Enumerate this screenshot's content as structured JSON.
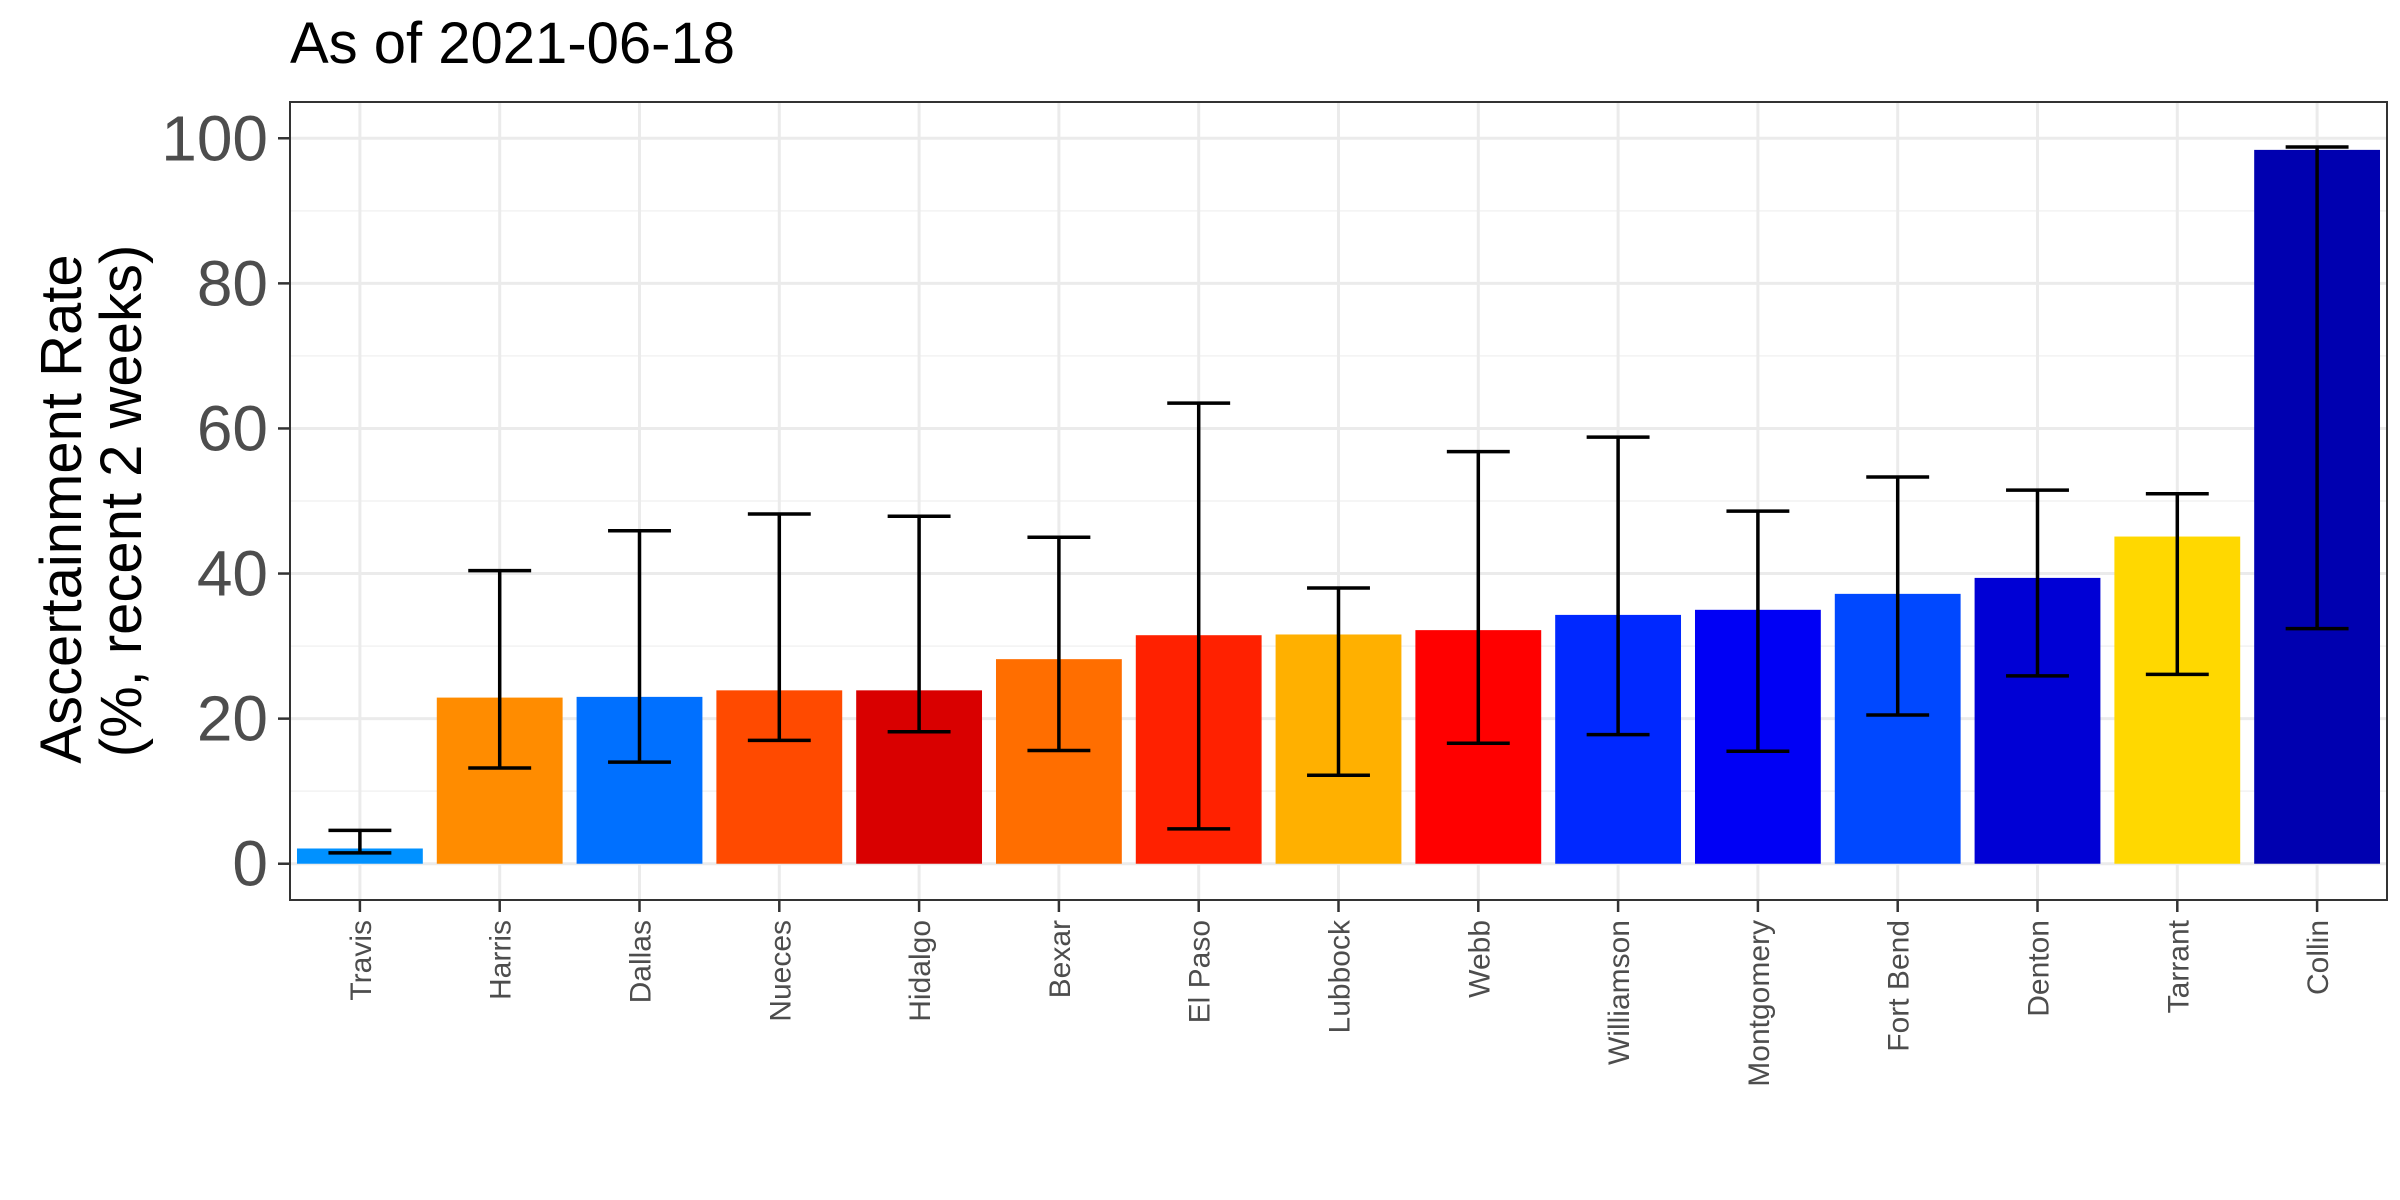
{
  "chart_data": {
    "type": "bar",
    "title": "As of 2021-06-18",
    "ylabel_lines": [
      "Ascertainment Rate",
      "(%, recent 2 weeks)"
    ],
    "xlabel": "",
    "ylim": [
      -5,
      105
    ],
    "yticks": [
      0,
      20,
      40,
      60,
      80,
      100
    ],
    "grid": true,
    "legend": "none",
    "categories": [
      "Travis",
      "Harris",
      "Dallas",
      "Nueces",
      "Hidalgo",
      "Bexar",
      "El Paso",
      "Lubbock",
      "Webb",
      "Williamson",
      "Montgomery",
      "Fort Bend",
      "Denton",
      "Tarrant",
      "Collin"
    ],
    "values": [
      2.1,
      22.9,
      23.0,
      23.9,
      23.9,
      28.2,
      31.5,
      31.6,
      32.2,
      34.3,
      35.0,
      37.2,
      39.4,
      45.1,
      98.4
    ],
    "error_low": [
      1.5,
      13.2,
      14.0,
      17.0,
      18.2,
      15.6,
      4.8,
      12.2,
      16.6,
      17.8,
      15.5,
      20.5,
      25.9,
      26.1,
      32.4
    ],
    "error_high": [
      4.6,
      40.4,
      45.9,
      48.2,
      47.9,
      45.0,
      63.5,
      38.0,
      56.8,
      58.8,
      48.6,
      53.3,
      51.5,
      51.0,
      98.8
    ],
    "colors": [
      "#0091ff",
      "#ff8c00",
      "#0070ff",
      "#ff4a00",
      "#d90000",
      "#ff6e00",
      "#ff2100",
      "#ffb000",
      "#ff0000",
      "#0028ff",
      "#0000f5",
      "#0048ff",
      "#0000d5",
      "#ffd800",
      "#0000b0"
    ]
  }
}
